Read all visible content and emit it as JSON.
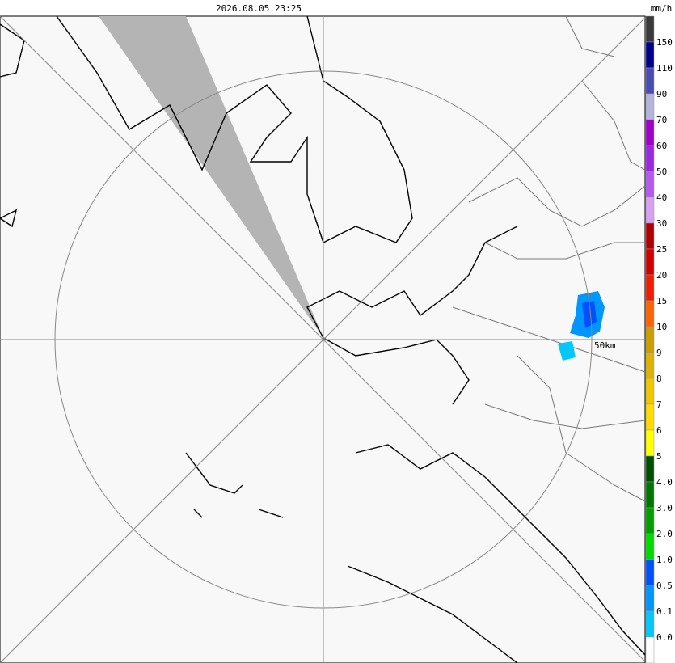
{
  "timestamp": "2026.08.05.23:25",
  "unit": "mm/h",
  "range_label": "50km",
  "legend": {
    "labels": [
      "150",
      "110",
      "90",
      "70",
      "60",
      "50",
      "40",
      "30",
      "25",
      "20",
      "15",
      "10",
      "9",
      "8",
      "7",
      "6",
      "5",
      "4.0",
      "3.0",
      "2.0",
      "1.0",
      "0.5",
      "0.1",
      "0.0"
    ],
    "colors": [
      "#3a3a3a",
      "#00008c",
      "#4b4bb4",
      "#b4b4dc",
      "#a000c8",
      "#9c28e6",
      "#b45af0",
      "#d7a0f0",
      "#b40000",
      "#d20000",
      "#f01e00",
      "#ff6400",
      "#c8a000",
      "#dcb400",
      "#f0c800",
      "#ffdc00",
      "#ffff00",
      "#005000",
      "#007800",
      "#00a000",
      "#00dc00",
      "#0050ff",
      "#0096ff",
      "#00c8ff",
      "#ffffff"
    ]
  }
}
